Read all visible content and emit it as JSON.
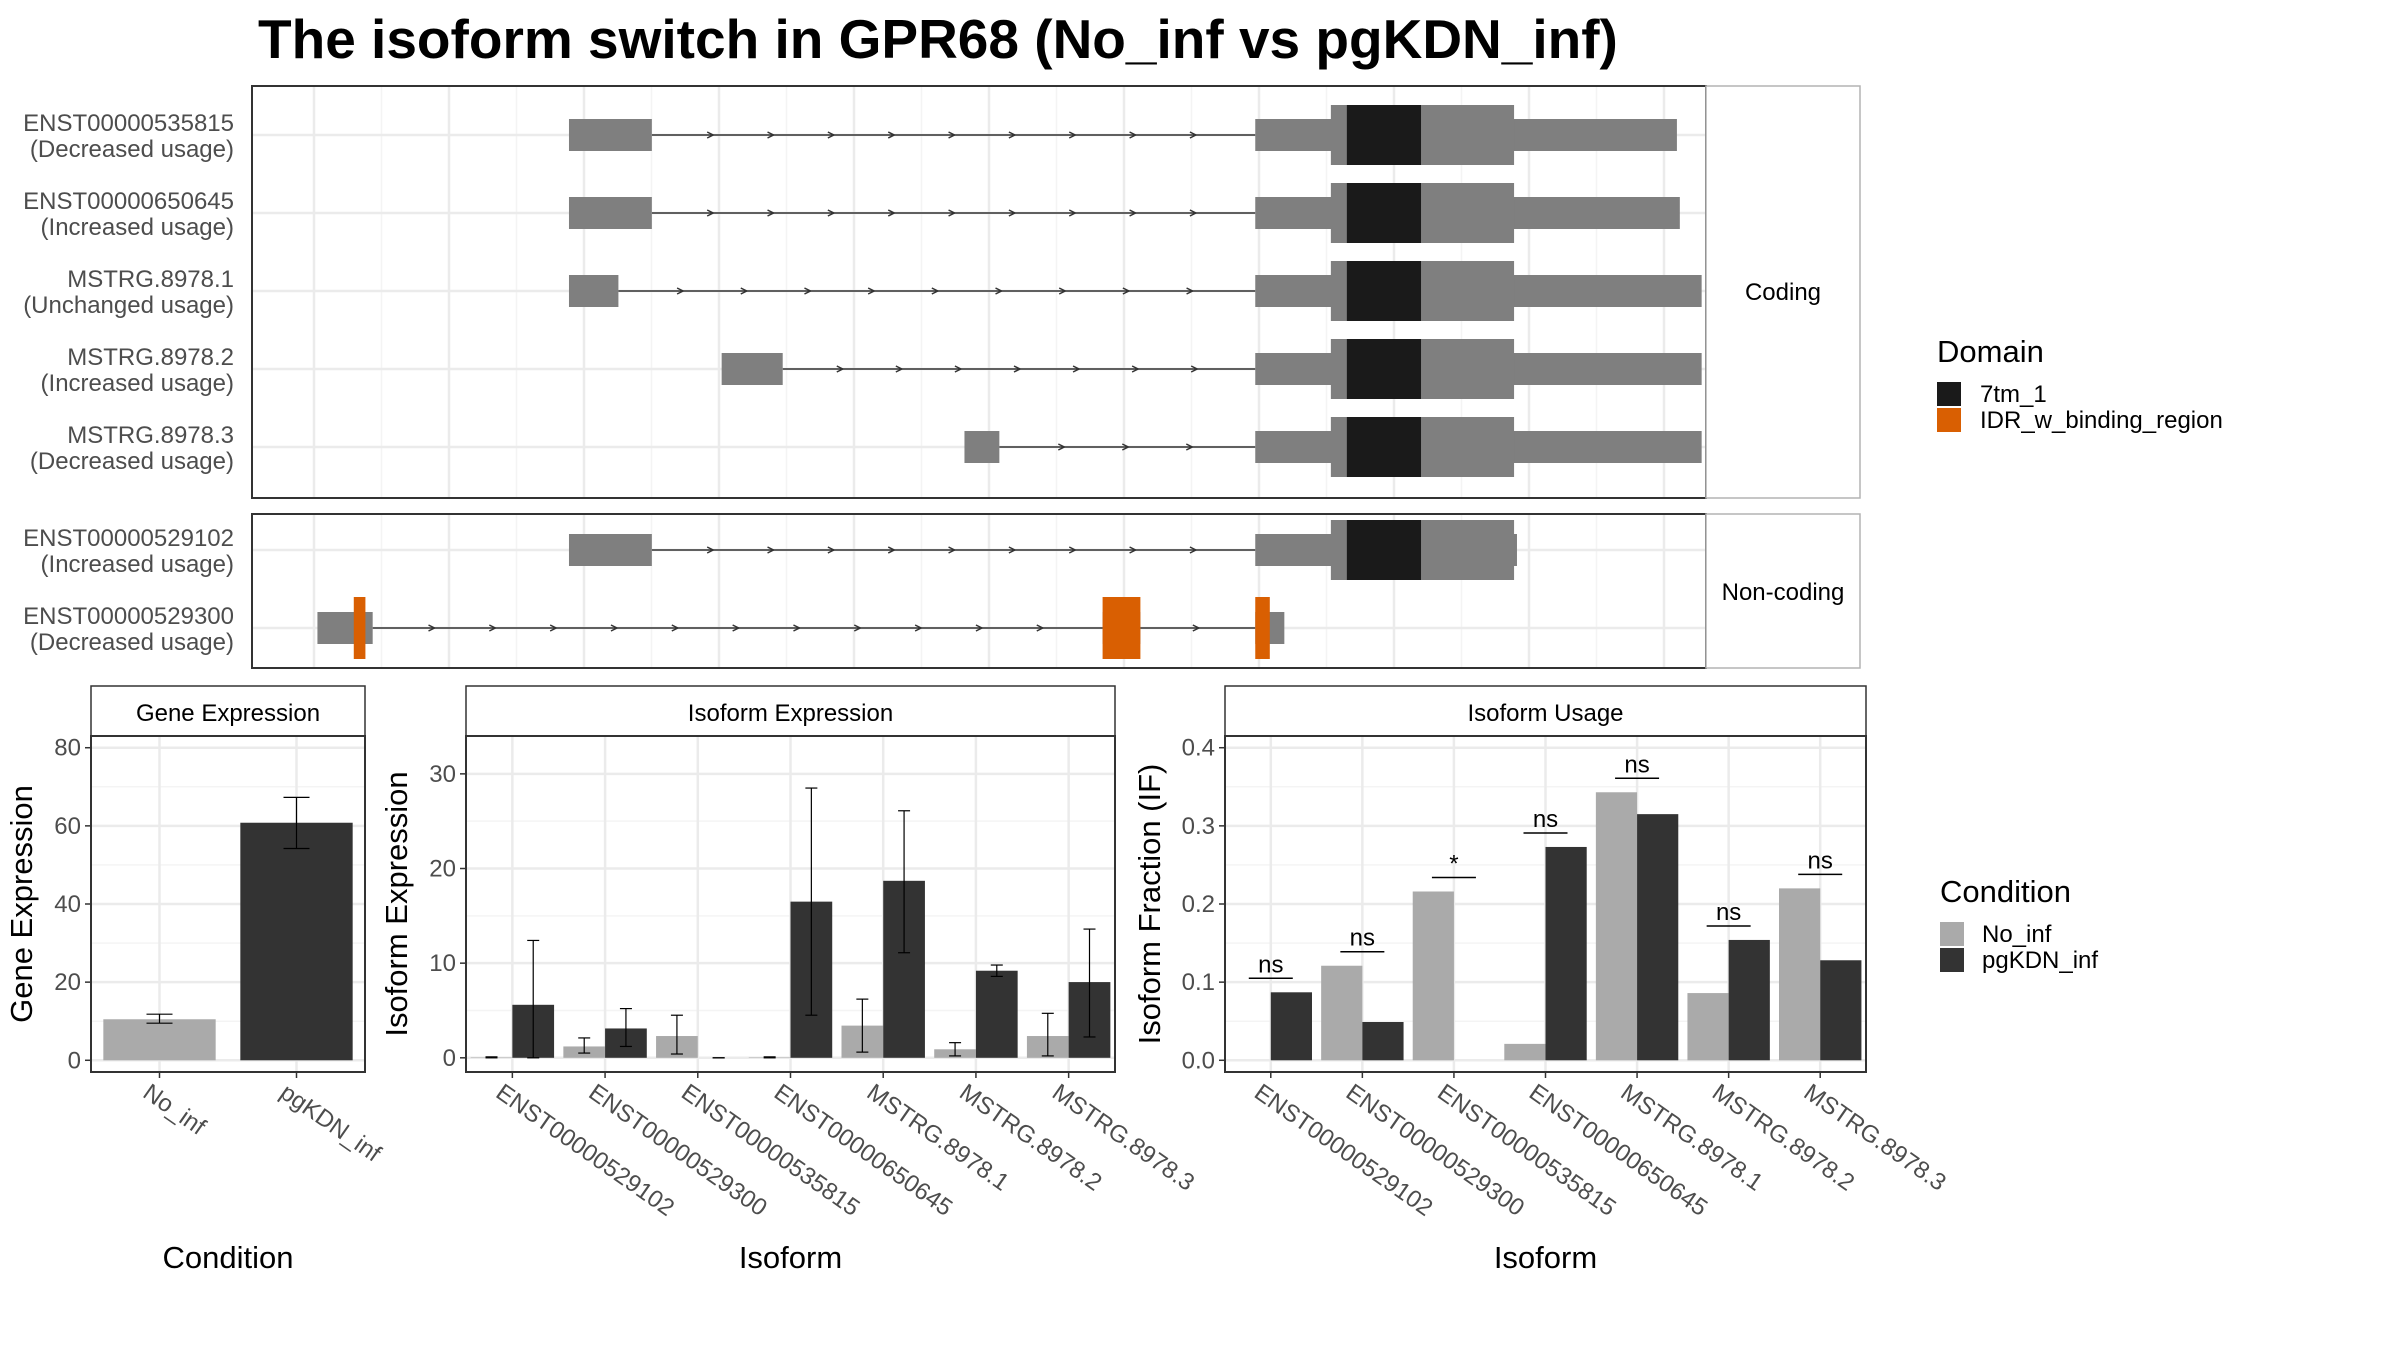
{
  "title": "The isoform switch in GPR68 (No_inf vs pgKDN_inf)",
  "colors": {
    "no_inf": "#aaaaaa",
    "pgkdn_inf": "#333333",
    "exon": "#7f7f7f",
    "domain_7tm": "#1a1a1a",
    "domain_idr": "#d95f02",
    "grid_major": "#ebebeb",
    "grid_minor": "#f4f4f4",
    "strip_bg": "#ffffff",
    "panel_border": "#333333"
  },
  "structure": {
    "coding_label": "Coding",
    "noncoding_label": "Non-coding",
    "domain_legend_title": "Domain",
    "domains": [
      {
        "name": "7tm_1",
        "color": "#1a1a1a"
      },
      {
        "name": "IDR_w_binding_region",
        "color": "#d95f02"
      }
    ],
    "x_range": [
      0,
      1000
    ],
    "coding": [
      {
        "name": "ENST00000535815",
        "usage": "(Decreased usage)",
        "exons": [
          {
            "s": 218,
            "e": 275,
            "type": "utr"
          },
          {
            "s": 690,
            "e": 980,
            "type": "split"
          }
        ],
        "domains": [
          {
            "s": 753,
            "e": 804,
            "name": "7tm_1"
          }
        ]
      },
      {
        "name": "ENST00000650645",
        "usage": "(Increased usage)",
        "exons": [
          {
            "s": 218,
            "e": 275,
            "type": "utr"
          },
          {
            "s": 690,
            "e": 982,
            "type": "split"
          }
        ],
        "domains": [
          {
            "s": 753,
            "e": 804,
            "name": "7tm_1"
          }
        ]
      },
      {
        "name": "MSTRG.8978.1",
        "usage": "(Unchanged usage)",
        "exons": [
          {
            "s": 218,
            "e": 252,
            "type": "utr"
          },
          {
            "s": 690,
            "e": 997,
            "type": "split"
          }
        ],
        "domains": [
          {
            "s": 753,
            "e": 804,
            "name": "7tm_1"
          }
        ]
      },
      {
        "name": "MSTRG.8978.2",
        "usage": "(Increased usage)",
        "exons": [
          {
            "s": 323,
            "e": 365,
            "type": "utr"
          },
          {
            "s": 690,
            "e": 997,
            "type": "split"
          }
        ],
        "domains": [
          {
            "s": 753,
            "e": 804,
            "name": "7tm_1"
          }
        ]
      },
      {
        "name": "MSTRG.8978.3",
        "usage": "(Decreased usage)",
        "exons": [
          {
            "s": 490,
            "e": 514,
            "type": "utr"
          },
          {
            "s": 690,
            "e": 997,
            "type": "split"
          }
        ],
        "domains": [
          {
            "s": 753,
            "e": 804,
            "name": "7tm_1"
          }
        ]
      }
    ],
    "noncoding": [
      {
        "name": "ENST00000529102",
        "usage": "(Increased usage)",
        "exons": [
          {
            "s": 218,
            "e": 275,
            "type": "utr"
          },
          {
            "s": 690,
            "e": 870,
            "type": "split"
          }
        ],
        "domains": [
          {
            "s": 753,
            "e": 804,
            "name": "7tm_1"
          }
        ]
      },
      {
        "name": "ENST00000529300",
        "usage": "(Decreased usage)",
        "exons": [
          {
            "s": 45,
            "e": 83,
            "type": "utr"
          },
          {
            "s": 585,
            "e": 611,
            "type": "utr"
          },
          {
            "s": 690,
            "e": 710,
            "type": "utr"
          }
        ],
        "domains": [
          {
            "s": 70,
            "e": 78,
            "name": "IDR_w_binding_region"
          },
          {
            "s": 585,
            "e": 611,
            "name": "IDR_w_binding_region"
          },
          {
            "s": 690,
            "e": 700,
            "name": "IDR_w_binding_region"
          }
        ]
      }
    ]
  },
  "condition_legend": {
    "title": "Condition",
    "items": [
      {
        "name": "No_inf",
        "color": "#aaaaaa"
      },
      {
        "name": "pgKDN_inf",
        "color": "#333333"
      }
    ]
  },
  "chart_data": [
    {
      "type": "bar",
      "title": "Gene Expression",
      "xlabel": "Condition",
      "ylabel": "Gene Expression",
      "categories": [
        "No_inf",
        "pgKDN_inf"
      ],
      "values": [
        10.5,
        60.8
      ],
      "errors": [
        [
          9.5,
          11.8
        ],
        [
          54.2,
          67.3
        ]
      ],
      "colors": [
        "#aaaaaa",
        "#333333"
      ],
      "ylim": [
        -3,
        83
      ],
      "yticks": [
        0,
        20,
        40,
        60,
        80
      ]
    },
    {
      "type": "bar",
      "title": "Isoform Expression",
      "xlabel": "Isoform",
      "ylabel": "Isoform Expression",
      "categories": [
        "ENST00000529102",
        "ENST00000529300",
        "ENST00000535815",
        "ENST00000650645",
        "MSTRG.8978.1",
        "MSTRG.8978.2",
        "MSTRG.8978.3"
      ],
      "series": [
        {
          "name": "No_inf",
          "values": [
            0.05,
            1.2,
            2.3,
            0.05,
            3.4,
            0.9,
            2.3
          ],
          "errors": [
            [
              0,
              0.1
            ],
            [
              0.5,
              2.1
            ],
            [
              0.4,
              4.5
            ],
            [
              0,
              0.1
            ],
            [
              0.6,
              6.2
            ],
            [
              0.2,
              1.6
            ],
            [
              0.2,
              4.7
            ]
          ]
        },
        {
          "name": "pgKDN_inf",
          "values": [
            5.6,
            3.1,
            0,
            16.5,
            18.7,
            9.2,
            8.0
          ],
          "errors": [
            [
              0,
              12.4
            ],
            [
              1.2,
              5.2
            ],
            [
              0,
              0
            ],
            [
              4.5,
              28.5
            ],
            [
              11.1,
              26.1
            ],
            [
              8.6,
              9.8
            ],
            [
              2.2,
              13.6
            ]
          ]
        }
      ],
      "ylim": [
        -1.5,
        34
      ],
      "yticks": [
        0,
        10,
        20,
        30
      ]
    },
    {
      "type": "bar",
      "title": "Isoform Usage",
      "xlabel": "Isoform",
      "ylabel": "Isoform Fraction (IF)",
      "categories": [
        "ENST00000529102",
        "ENST00000529300",
        "ENST00000535815",
        "ENST00000650645",
        "MSTRG.8978.1",
        "MSTRG.8978.2",
        "MSTRG.8978.3"
      ],
      "series": [
        {
          "name": "No_inf",
          "values": [
            0.0,
            0.121,
            0.216,
            0.021,
            0.343,
            0.086,
            0.22
          ]
        },
        {
          "name": "pgKDN_inf",
          "values": [
            0.087,
            0.049,
            0.0,
            0.273,
            0.315,
            0.154,
            0.128
          ]
        }
      ],
      "significance": [
        "ns",
        "ns",
        "*",
        "ns",
        "ns",
        "ns",
        "ns"
      ],
      "ylim": [
        -0.015,
        0.415
      ],
      "yticks": [
        0.0,
        0.1,
        0.2,
        0.3,
        0.4
      ],
      "ytick_labels": [
        "0.0",
        "0.1",
        "0.2",
        "0.3",
        "0.4"
      ]
    }
  ]
}
